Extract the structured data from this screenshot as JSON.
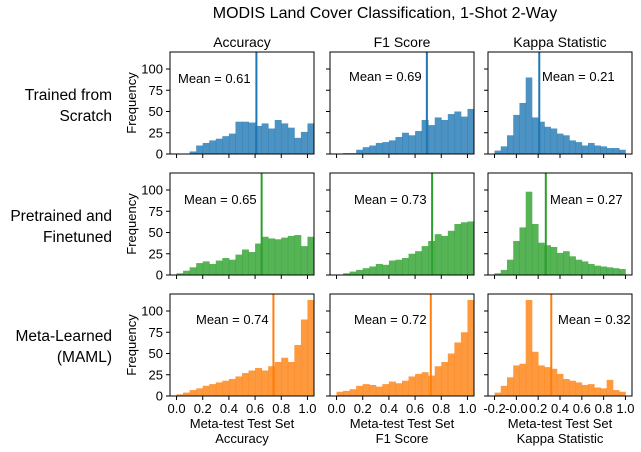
{
  "figure": {
    "title": "MODIS Land Cover Classification, 1-Shot 2-Way",
    "row_labels": [
      [
        "Trained from",
        "Scratch"
      ],
      [
        "Pretrained and",
        "Finetuned"
      ],
      [
        "Meta-Learned",
        "(MAML)"
      ]
    ],
    "column_titles": [
      "Accuracy",
      "F1 Score",
      "Kappa Statistic"
    ],
    "xlabels": [
      [
        "Meta-test Test Set",
        "Accuracy"
      ],
      [
        "Meta-test Test Set",
        "F1 Score"
      ],
      [
        "Meta-test Test Set",
        "Kappa Statistic"
      ]
    ],
    "ylabel": "Frequency"
  },
  "colors": {
    "row1": "#1f77b4",
    "row2": "#2ca02c",
    "row3": "#ff7f0e"
  },
  "chart_data": {
    "type": "histogram-grid",
    "ylim": [
      0,
      120
    ],
    "yticks": [
      0,
      25,
      50,
      75,
      100
    ],
    "columns": [
      {
        "metric": "Accuracy",
        "xlim": [
          -0.05,
          1.05
        ],
        "xticks": [
          0.0,
          0.2,
          0.4,
          0.6,
          0.8,
          1.0
        ],
        "xticklabels": [
          "0.0",
          "0.2",
          "0.4",
          "0.6",
          "0.8",
          "1.0"
        ]
      },
      {
        "metric": "F1 Score",
        "xlim": [
          -0.05,
          1.05
        ],
        "xticks": [
          0.0,
          0.2,
          0.4,
          0.6,
          0.8,
          1.0
        ],
        "xticklabels": [
          "0.0",
          "0.2",
          "0.4",
          "0.6",
          "0.8",
          "1.0"
        ]
      },
      {
        "metric": "Kappa Statistic",
        "xlim": [
          -0.26,
          1.06
        ],
        "xticks": [
          -0.2,
          0.0,
          0.2,
          0.4,
          0.6,
          0.8,
          1.0
        ],
        "xticklabels": [
          "-0.2",
          "-0.0",
          "0.2",
          "0.4",
          "0.6",
          "0.8",
          "1.0"
        ]
      }
    ],
    "panels": [
      {
        "row": 0,
        "col": 0,
        "mean": 0.61,
        "mean_label": "Mean = 0.61",
        "bin_start": 0.0,
        "bin_width": 0.05,
        "values": [
          0,
          0,
          3,
          10,
          13,
          16,
          18,
          21,
          24,
          38,
          38,
          37,
          33,
          36,
          30,
          40,
          36,
          31,
          19,
          26,
          36
        ]
      },
      {
        "row": 0,
        "col": 1,
        "mean": 0.69,
        "mean_label": "Mean = 0.69",
        "bin_start": 0.0,
        "bin_width": 0.05,
        "values": [
          0,
          1,
          1,
          5,
          8,
          10,
          13,
          14,
          16,
          20,
          25,
          22,
          27,
          40,
          34,
          43,
          40,
          47,
          50,
          44,
          53
        ]
      },
      {
        "row": 0,
        "col": 2,
        "mean": 0.21,
        "mean_label": "Mean = 0.21",
        "bin_start": -0.2,
        "bin_width": 0.0571,
        "values": [
          4,
          9,
          22,
          46,
          60,
          90,
          43,
          38,
          32,
          30,
          24,
          22,
          16,
          14,
          10,
          13,
          10,
          9,
          7,
          7,
          5
        ]
      },
      {
        "row": 1,
        "col": 0,
        "mean": 0.65,
        "mean_label": "Mean = 0.65",
        "bin_start": 0.0,
        "bin_width": 0.05,
        "values": [
          2,
          5,
          9,
          14,
          16,
          13,
          17,
          20,
          18,
          24,
          30,
          27,
          37,
          45,
          43,
          42,
          44,
          46,
          47,
          34,
          45
        ]
      },
      {
        "row": 1,
        "col": 1,
        "mean": 0.73,
        "mean_label": "Mean = 0.73",
        "bin_start": 0.0,
        "bin_width": 0.05,
        "values": [
          0,
          2,
          4,
          6,
          8,
          10,
          13,
          12,
          17,
          18,
          20,
          25,
          28,
          34,
          40,
          48,
          46,
          52,
          60,
          62,
          63
        ]
      },
      {
        "row": 1,
        "col": 2,
        "mean": 0.27,
        "mean_label": "Mean = 0.27",
        "bin_start": -0.2,
        "bin_width": 0.0571,
        "values": [
          2,
          6,
          18,
          40,
          56,
          98,
          60,
          38,
          35,
          33,
          26,
          28,
          22,
          18,
          16,
          13,
          11,
          10,
          9,
          8,
          7
        ]
      },
      {
        "row": 2,
        "col": 0,
        "mean": 0.74,
        "mean_label": "Mean = 0.74",
        "bin_start": 0.0,
        "bin_width": 0.05,
        "values": [
          2,
          4,
          7,
          9,
          12,
          14,
          16,
          18,
          20,
          23,
          27,
          30,
          33,
          30,
          35,
          40,
          45,
          40,
          60,
          90,
          113
        ]
      },
      {
        "row": 2,
        "col": 1,
        "mean": 0.72,
        "mean_label": "Mean = 0.72",
        "bin_start": 0.0,
        "bin_width": 0.05,
        "values": [
          5,
          6,
          8,
          12,
          14,
          13,
          11,
          14,
          17,
          15,
          18,
          23,
          26,
          28,
          24,
          35,
          40,
          50,
          63,
          75,
          113
        ]
      },
      {
        "row": 2,
        "col": 2,
        "mean": 0.32,
        "mean_label": "Mean = 0.32",
        "bin_start": -0.2,
        "bin_width": 0.0571,
        "values": [
          4,
          12,
          22,
          36,
          38,
          113,
          52,
          36,
          34,
          32,
          26,
          20,
          18,
          16,
          13,
          14,
          10,
          9,
          19,
          7,
          5
        ]
      }
    ]
  }
}
